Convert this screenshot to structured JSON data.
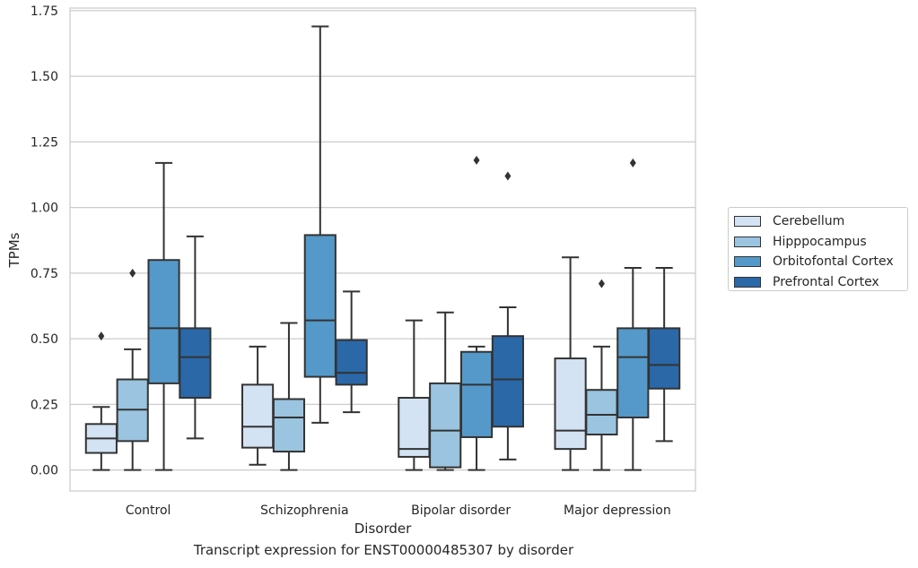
{
  "chart_data": {
    "type": "box",
    "title": "Transcript expression for ENST00000485307 by disorder",
    "xlabel": "Disorder",
    "ylabel": "TPMs",
    "ylim": [
      -0.08,
      1.76
    ],
    "yticks": [
      "0.00",
      "0.25",
      "0.50",
      "0.75",
      "1.00",
      "1.25",
      "1.50",
      "1.75"
    ],
    "grid": "horizontal",
    "legend_position": "right",
    "categories": [
      "Control",
      "Schizophrenia",
      "Bipolar disorder",
      "Major depression"
    ],
    "series": [
      {
        "name": "Cerebellum",
        "color": "#d3e3f3",
        "boxes": [
          {
            "whisker_low": 0.0,
            "q1": 0.065,
            "median": 0.12,
            "q3": 0.175,
            "whisker_high": 0.24,
            "outliers": [
              0.51
            ]
          },
          {
            "whisker_low": 0.02,
            "q1": 0.085,
            "median": 0.165,
            "q3": 0.325,
            "whisker_high": 0.47,
            "outliers": []
          },
          {
            "whisker_low": 0.0,
            "q1": 0.05,
            "median": 0.08,
            "q3": 0.275,
            "whisker_high": 0.57,
            "outliers": []
          },
          {
            "whisker_low": 0.0,
            "q1": 0.08,
            "median": 0.15,
            "q3": 0.425,
            "whisker_high": 0.81,
            "outliers": []
          }
        ]
      },
      {
        "name": "Hipppocampus",
        "color": "#9ac4df",
        "boxes": [
          {
            "whisker_low": 0.0,
            "q1": 0.11,
            "median": 0.23,
            "q3": 0.345,
            "whisker_high": 0.46,
            "outliers": [
              0.75
            ]
          },
          {
            "whisker_low": 0.0,
            "q1": 0.07,
            "median": 0.2,
            "q3": 0.27,
            "whisker_high": 0.56,
            "outliers": []
          },
          {
            "whisker_low": 0.0,
            "q1": 0.01,
            "median": 0.15,
            "q3": 0.33,
            "whisker_high": 0.6,
            "outliers": []
          },
          {
            "whisker_low": 0.0,
            "q1": 0.135,
            "median": 0.21,
            "q3": 0.305,
            "whisker_high": 0.47,
            "outliers": [
              0.71
            ]
          }
        ]
      },
      {
        "name": "Orbitofontal Cortex",
        "color": "#5499c9",
        "boxes": [
          {
            "whisker_low": 0.0,
            "q1": 0.33,
            "median": 0.54,
            "q3": 0.8,
            "whisker_high": 1.17,
            "outliers": []
          },
          {
            "whisker_low": 0.18,
            "q1": 0.355,
            "median": 0.57,
            "q3": 0.895,
            "whisker_high": 1.69,
            "outliers": []
          },
          {
            "whisker_low": 0.0,
            "q1": 0.125,
            "median": 0.325,
            "q3": 0.45,
            "whisker_high": 0.47,
            "outliers": [
              1.18
            ]
          },
          {
            "whisker_low": 0.0,
            "q1": 0.2,
            "median": 0.43,
            "q3": 0.54,
            "whisker_high": 0.77,
            "outliers": [
              1.17
            ]
          }
        ]
      },
      {
        "name": "Prefrontal Cortex",
        "color": "#2a68a8",
        "boxes": [
          {
            "whisker_low": 0.12,
            "q1": 0.275,
            "median": 0.43,
            "q3": 0.54,
            "whisker_high": 0.89,
            "outliers": []
          },
          {
            "whisker_low": 0.22,
            "q1": 0.325,
            "median": 0.37,
            "q3": 0.495,
            "whisker_high": 0.68,
            "outliers": []
          },
          {
            "whisker_low": 0.04,
            "q1": 0.165,
            "median": 0.345,
            "q3": 0.51,
            "whisker_high": 0.62,
            "outliers": [
              1.12
            ]
          },
          {
            "whisker_low": 0.11,
            "q1": 0.31,
            "median": 0.4,
            "q3": 0.54,
            "whisker_high": 0.77,
            "outliers": []
          }
        ]
      }
    ]
  }
}
